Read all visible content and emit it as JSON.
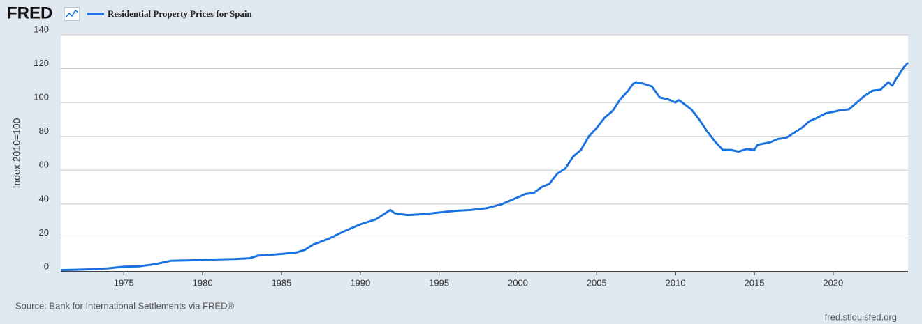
{
  "logo": "FRED",
  "chart_data": {
    "type": "line",
    "series": [
      {
        "name": "Residential Property Prices for Spain",
        "color": "#1a73e0",
        "x": [
          1971,
          1972,
          1973,
          1974,
          1975,
          1976,
          1977,
          1978,
          1979,
          1980,
          1981,
          1982,
          1983,
          1983.5,
          1984,
          1985,
          1986,
          1986.5,
          1987,
          1988,
          1989,
          1990,
          1991,
          1991.5,
          1991.9,
          1992.2,
          1993,
          1994,
          1995,
          1996,
          1997,
          1998,
          1999,
          2000,
          2000.5,
          2001,
          2001.5,
          2002,
          2002.5,
          2003,
          2003.5,
          2004,
          2004.5,
          2005,
          2005.5,
          2006,
          2006.5,
          2007,
          2007.3,
          2007.5,
          2008,
          2008.5,
          2009,
          2009.5,
          2010,
          2010.2,
          2010.5,
          2011,
          2011.5,
          2012,
          2012.5,
          2013,
          2013.5,
          2014,
          2014.5,
          2015,
          2015.2,
          2016,
          2016.5,
          2017,
          2017.5,
          2018,
          2018.5,
          2019,
          2019.5,
          2020,
          2020.5,
          2021,
          2021.5,
          2022,
          2022.5,
          2023,
          2023.5,
          2023.75,
          2024,
          2024.5,
          2024.75
        ],
        "values": [
          1.0,
          1.2,
          1.5,
          2.0,
          3.0,
          3.2,
          4.5,
          6.5,
          6.7,
          7.0,
          7.3,
          7.5,
          8.0,
          9.5,
          9.8,
          10.5,
          11.5,
          13,
          16,
          19.5,
          24,
          28,
          31,
          34,
          36.5,
          34.5,
          33.5,
          34,
          35,
          36,
          36.5,
          37.5,
          40,
          44,
          46,
          46.5,
          50,
          52,
          58,
          61,
          68,
          72,
          80,
          85,
          91,
          95,
          102,
          107,
          111,
          112,
          111,
          109.5,
          103,
          102,
          100,
          101.5,
          99.5,
          96,
          90,
          83,
          77,
          72,
          72,
          71,
          72.5,
          72,
          75,
          76.5,
          78.5,
          79,
          82,
          85,
          89,
          91,
          93.5,
          94.5,
          95.5,
          96,
          100,
          104,
          107,
          107.5,
          112,
          110,
          114,
          121,
          123.5
        ]
      }
    ],
    "ylabel": "Index 2010=100",
    "xlim": [
      1971,
      2024.75
    ],
    "xticks": [
      1975,
      1980,
      1985,
      1990,
      1995,
      2000,
      2005,
      2010,
      2015,
      2020
    ],
    "ylim": [
      0,
      140
    ],
    "yticks": [
      0,
      20,
      40,
      60,
      80,
      100,
      120,
      140
    ],
    "grid": true
  },
  "footer": {
    "source": "Source: Bank for International Settlements via FRED®",
    "site": "fred.stlouisfed.org"
  }
}
